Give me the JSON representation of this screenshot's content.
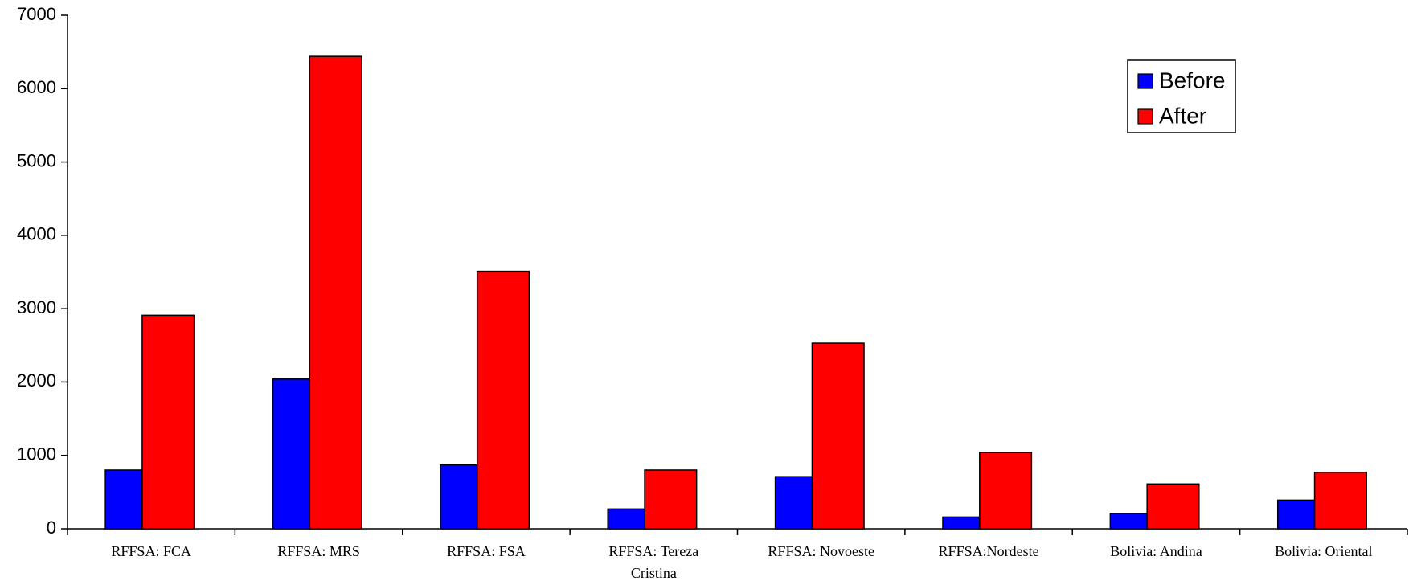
{
  "chart_data": {
    "type": "bar",
    "categories": [
      "RFFSA: FCA",
      "RFFSA: MRS",
      "RFFSA: FSA",
      "RFFSA: Tereza Cristina",
      "RFFSA: Novoeste",
      "RFFSA:Nordeste",
      "Bolivia: Andina",
      "Bolivia: Oriental"
    ],
    "series": [
      {
        "name": "Before",
        "color": "#0000ff",
        "values": [
          800,
          2040,
          870,
          270,
          710,
          160,
          210,
          390
        ]
      },
      {
        "name": "After",
        "color": "#ff0000",
        "values": [
          2910,
          6440,
          3510,
          800,
          2530,
          1040,
          610,
          770
        ]
      }
    ],
    "ylim": [
      0,
      7000
    ],
    "yticks": [
      0,
      1000,
      2000,
      3000,
      4000,
      5000,
      6000,
      7000
    ],
    "legend": "top-right",
    "grid": false
  }
}
